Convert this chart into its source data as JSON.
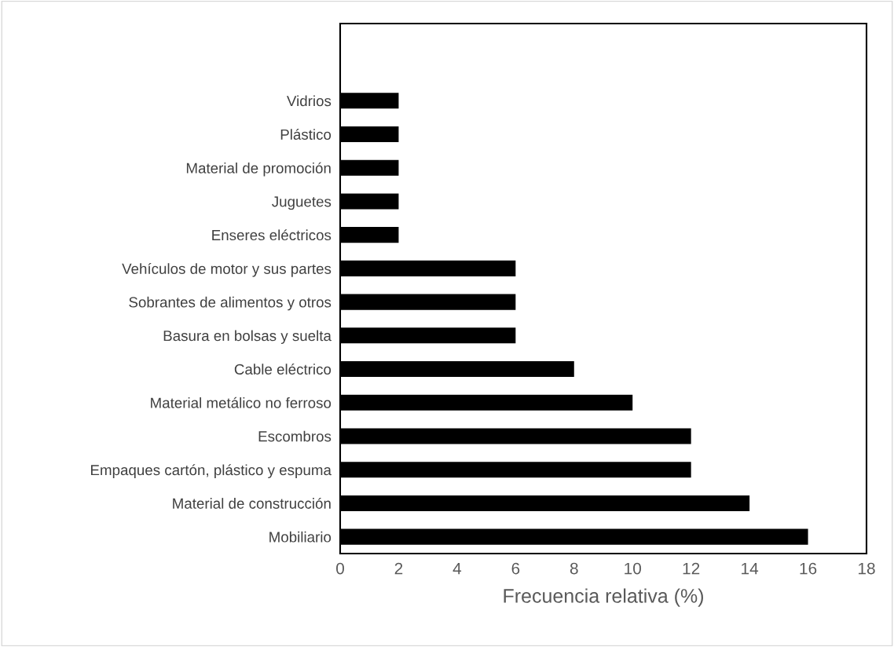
{
  "chart_data": {
    "type": "bar",
    "orientation": "horizontal",
    "xlabel": "Frecuencia relativa (%)",
    "categories": [
      "Vidrios",
      "Plástico",
      "Material de promoción",
      "Juguetes",
      "Enseres eléctricos",
      "Vehículos de motor y sus partes",
      "Sobrantes de alimentos y otros",
      "Basura en bolsas y suelta",
      "Cable eléctrico",
      "Material metálico no ferroso",
      "Escombros",
      "Empaques cartón, plástico y espuma",
      "Material de construcción",
      "Mobiliario"
    ],
    "values": [
      2,
      2,
      2,
      2,
      2,
      6,
      6,
      6,
      8,
      10,
      12,
      12,
      14,
      16
    ],
    "color": "#000000",
    "xlim": [
      0,
      18
    ],
    "xticks": [
      0,
      2,
      4,
      6,
      8,
      10,
      12,
      14,
      16,
      18
    ],
    "grid": false,
    "legend": false
  }
}
